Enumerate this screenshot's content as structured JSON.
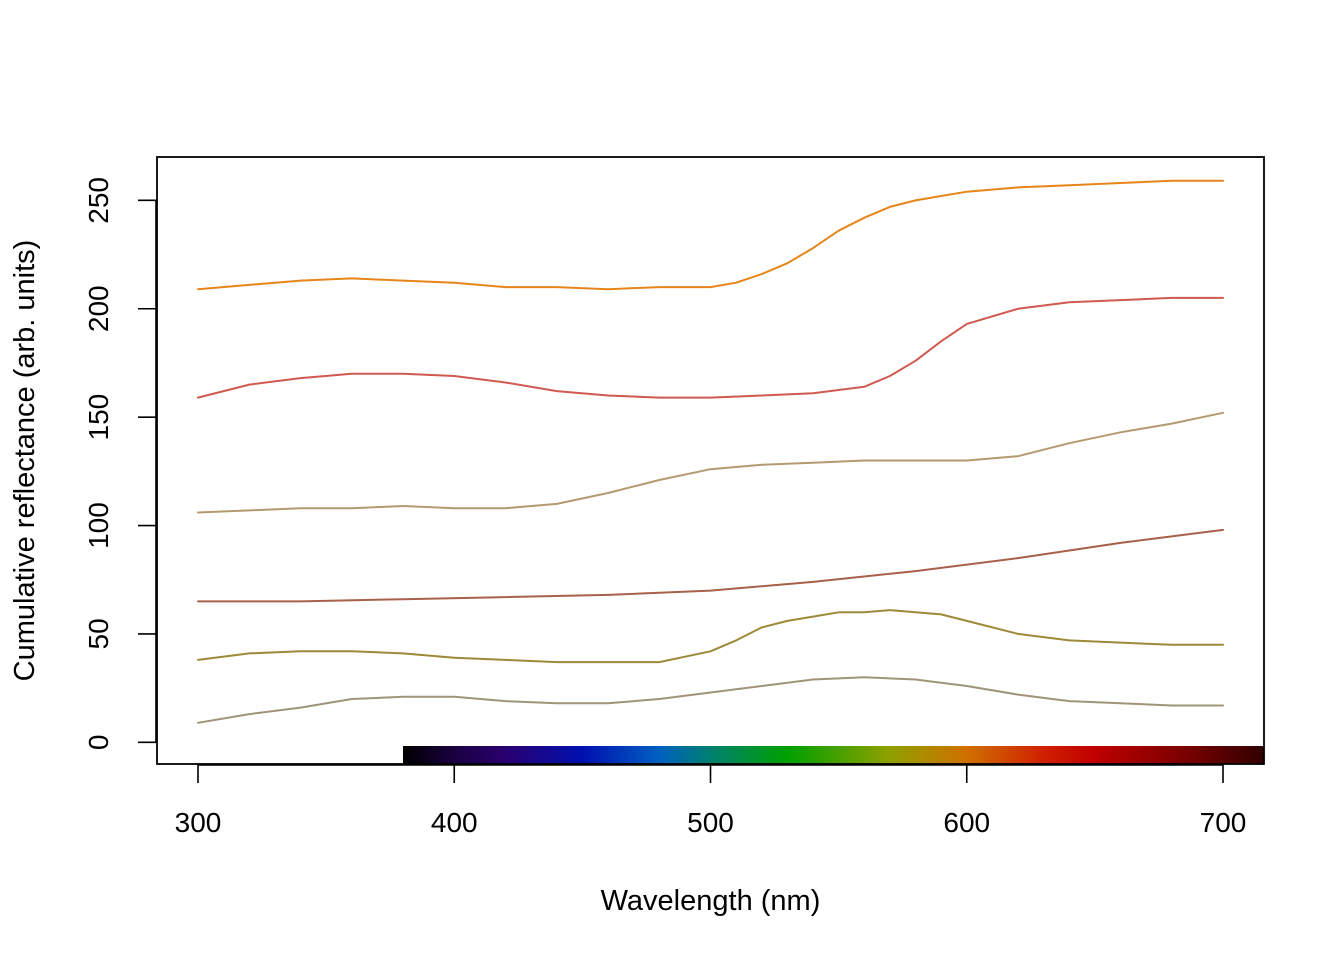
{
  "chart_data": {
    "type": "line",
    "title": "",
    "xlabel": "Wavelength (nm)",
    "ylabel": "Cumulative reflectance (arb. units)",
    "xlim": [
      284,
      716
    ],
    "ylim": [
      -10,
      270
    ],
    "x_ticks": [
      300,
      400,
      500,
      600,
      700
    ],
    "y_ticks": [
      0,
      50,
      100,
      150,
      200,
      250
    ],
    "grid": false,
    "legend": "none",
    "visible_spectrum_bar": {
      "from": 380,
      "to": 716,
      "stops": [
        {
          "nm": 380,
          "color": "#000000"
        },
        {
          "nm": 400,
          "color": "#1a0040"
        },
        {
          "nm": 420,
          "color": "#2a0070"
        },
        {
          "nm": 450,
          "color": "#0010b0"
        },
        {
          "nm": 480,
          "color": "#0060c0"
        },
        {
          "nm": 500,
          "color": "#008070"
        },
        {
          "nm": 530,
          "color": "#00a000"
        },
        {
          "nm": 570,
          "color": "#90a000"
        },
        {
          "nm": 600,
          "color": "#d07000"
        },
        {
          "nm": 630,
          "color": "#d02000"
        },
        {
          "nm": 650,
          "color": "#c00000"
        },
        {
          "nm": 690,
          "color": "#700000"
        },
        {
          "nm": 716,
          "color": "#300000"
        }
      ]
    },
    "series": [
      {
        "color": "#E6861A",
        "x": [
          300,
          320,
          340,
          360,
          380,
          400,
          420,
          440,
          460,
          480,
          500,
          510,
          520,
          530,
          540,
          550,
          560,
          570,
          580,
          590,
          600,
          620,
          640,
          660,
          680,
          700
        ],
        "y": [
          209,
          211,
          213,
          214,
          213,
          212,
          210,
          210,
          209,
          210,
          210,
          212,
          216,
          221,
          228,
          236,
          242,
          247,
          250,
          252,
          254,
          256,
          257,
          258,
          259,
          259
        ]
      },
      {
        "color": "#D05A50",
        "x": [
          300,
          320,
          340,
          360,
          380,
          400,
          420,
          440,
          460,
          480,
          500,
          520,
          540,
          560,
          570,
          580,
          590,
          600,
          620,
          640,
          660,
          680,
          700
        ],
        "y": [
          159,
          165,
          168,
          170,
          170,
          169,
          166,
          162,
          160,
          159,
          159,
          160,
          161,
          164,
          169,
          176,
          185,
          193,
          200,
          203,
          204,
          205,
          205
        ]
      },
      {
        "color": "#B49A70",
        "x": [
          300,
          320,
          340,
          360,
          380,
          400,
          420,
          440,
          460,
          480,
          500,
          520,
          540,
          560,
          580,
          600,
          620,
          640,
          660,
          680,
          700
        ],
        "y": [
          106,
          107,
          108,
          108,
          109,
          108,
          108,
          110,
          115,
          121,
          126,
          128,
          129,
          130,
          130,
          130,
          132,
          138,
          143,
          147,
          152
        ]
      },
      {
        "color": "#A8604A",
        "x": [
          300,
          340,
          380,
          420,
          460,
          500,
          540,
          580,
          620,
          660,
          700
        ],
        "y": [
          65,
          65,
          66,
          67,
          68,
          70,
          74,
          79,
          85,
          92,
          98
        ]
      },
      {
        "color": "#9C8A38",
        "x": [
          300,
          320,
          340,
          360,
          380,
          400,
          420,
          440,
          460,
          480,
          500,
          510,
          520,
          530,
          540,
          550,
          560,
          570,
          580,
          590,
          600,
          620,
          640,
          660,
          680,
          700
        ],
        "y": [
          38,
          41,
          42,
          42,
          41,
          39,
          38,
          37,
          37,
          37,
          42,
          47,
          53,
          56,
          58,
          60,
          60,
          61,
          60,
          59,
          56,
          50,
          47,
          46,
          45,
          45
        ]
      },
      {
        "color": "#A09478",
        "x": [
          300,
          320,
          340,
          360,
          380,
          400,
          420,
          440,
          460,
          480,
          500,
          520,
          540,
          560,
          580,
          600,
          620,
          640,
          660,
          680,
          700
        ],
        "y": [
          9,
          13,
          16,
          20,
          21,
          21,
          19,
          18,
          18,
          20,
          23,
          26,
          29,
          30,
          29,
          26,
          22,
          19,
          18,
          17,
          17
        ]
      }
    ]
  }
}
